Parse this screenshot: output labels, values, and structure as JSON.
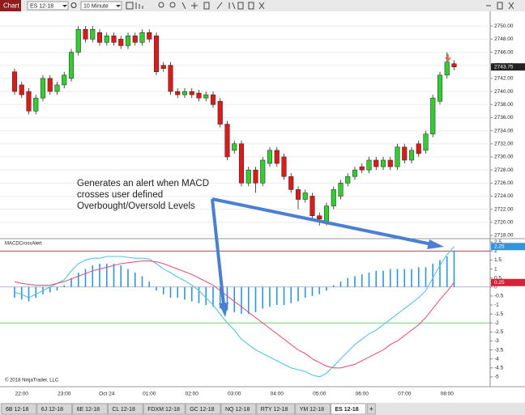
{
  "toolbar": {
    "tab": "Chart",
    "instrument": "ES 12-18",
    "interval": "10 Minute"
  },
  "annotation": {
    "lines": [
      "Generates an alert when MACD",
      "crosses user defined",
      "Overbought/Oversold Levels"
    ]
  },
  "copyright": "© 2018 NinjaTrader, LLC",
  "tabs": [
    "6B 12-18",
    "6J 12-18",
    "6E 12-18",
    "CL 12-18",
    "FDXM 12-18",
    "GC 12-18",
    "NQ 12-18",
    "RTY 12-18",
    "YM 12-18",
    "ES 12-18"
  ],
  "active_tab": "ES 12-18",
  "add_tab": "+",
  "chart_data": [
    {
      "type": "candlestick",
      "up_color": "#33cc33",
      "down_color": "#dd1a1a",
      "categories": [
        null,
        "22:00",
        null,
        null,
        null,
        null,
        null,
        "23:00",
        null,
        null,
        null,
        null,
        null,
        "Oct 24",
        null,
        null,
        null,
        null,
        null,
        "01:00",
        null,
        null,
        null,
        null,
        null,
        "02:00",
        null,
        null,
        null,
        null,
        null,
        "03:00",
        null,
        null,
        null,
        null,
        null,
        "04:00",
        null,
        null,
        null,
        null,
        null,
        "05:00",
        null,
        null,
        null,
        null,
        null,
        "06:00",
        null,
        null,
        null,
        null,
        null,
        "07:00",
        null,
        null,
        null,
        null,
        null,
        "08:00",
        null
      ],
      "open": [
        2743,
        2741,
        2740,
        2737,
        2739,
        2742,
        2740,
        2741,
        2742,
        2746,
        2749.5,
        2748,
        2749,
        2747.5,
        2748.5,
        2748,
        2747,
        2748.5,
        2747.5,
        2749,
        2748.5,
        2744,
        2744,
        2740,
        2739.5,
        2740,
        2739.75,
        2739,
        2739.5,
        2738.5,
        2735,
        2731,
        2732,
        2726,
        2728,
        2726,
        2729,
        2731,
        2730,
        2727,
        2725,
        2723.5,
        2724,
        2721,
        2720,
        2722.5,
        2724,
        2726,
        2727,
        2728.5,
        2728,
        2729.5,
        2728.5,
        2729.5,
        2728.5,
        2731.5,
        2729.5,
        2732,
        2731,
        2733.5,
        2738.5,
        2742.5,
        2744.25
      ],
      "high": [
        2743.5,
        2741.5,
        2740.5,
        2739.5,
        2742.5,
        2742.5,
        2741.5,
        2743,
        2746.5,
        2750,
        2750,
        2750,
        2749.5,
        2749,
        2749,
        2748.5,
        2749,
        2749,
        2749.5,
        2749.5,
        2749,
        2744.5,
        2744.5,
        2740.5,
        2740.5,
        2740.5,
        2740.25,
        2740,
        2740,
        2739,
        2735.5,
        2732.5,
        2732.5,
        2728.5,
        2728.5,
        2730,
        2731.5,
        2731.5,
        2730.5,
        2727.5,
        2725.5,
        2725,
        2724.5,
        2721.5,
        2723,
        2725.5,
        2726.5,
        2727.5,
        2728.5,
        2729,
        2730,
        2730,
        2730,
        2730,
        2732,
        2732,
        2731.5,
        2732.5,
        2734,
        2739.5,
        2743,
        2746,
        2744.75
      ],
      "low": [
        2739.5,
        2739,
        2736.5,
        2736.5,
        2738.5,
        2739.5,
        2739.5,
        2740.5,
        2741.5,
        2745.5,
        2747.5,
        2747.5,
        2747,
        2747,
        2747,
        2746.5,
        2746.5,
        2747,
        2747,
        2747.5,
        2742.5,
        2743,
        2739.5,
        2739,
        2739,
        2739,
        2738.5,
        2738.5,
        2737.5,
        2734.5,
        2729.5,
        2730.5,
        2725.5,
        2725.5,
        2724.5,
        2725.5,
        2728.5,
        2728.5,
        2726.5,
        2724.5,
        2722,
        2723,
        2720.5,
        2719.5,
        2719.5,
        2722,
        2723.5,
        2725.5,
        2726.5,
        2727.5,
        2727.5,
        2728,
        2728,
        2728,
        2728,
        2729,
        2729,
        2730,
        2730.5,
        2733,
        2738,
        2742,
        2743.25
      ],
      "close": [
        2740,
        2739.5,
        2737,
        2739,
        2742,
        2740,
        2741,
        2742.5,
        2746,
        2749.5,
        2748,
        2749.5,
        2747.5,
        2748.5,
        2747.5,
        2747,
        2748.5,
        2747.5,
        2749,
        2748,
        2743,
        2743.5,
        2740,
        2739.5,
        2740,
        2739.5,
        2739,
        2739.5,
        2738,
        2735,
        2730,
        2732,
        2726,
        2728,
        2726,
        2729.5,
        2731,
        2729,
        2727,
        2725,
        2723.5,
        2724.5,
        2721,
        2720.5,
        2722.5,
        2725,
        2726,
        2727,
        2728,
        2728,
        2729.5,
        2728.5,
        2729.5,
        2728.5,
        2731.5,
        2729.5,
        2731,
        2730.5,
        2733.5,
        2739,
        2742.5,
        2744.5,
        2743.75
      ],
      "ylim": [
        2717.75,
        2752.25
      ],
      "yticks": [
        {
          "value": 2718,
          "label": "2718.00"
        },
        {
          "value": 2720,
          "label": "2720.00"
        },
        {
          "value": 2722,
          "label": "2722.00"
        },
        {
          "value": 2724,
          "label": "2724.00"
        },
        {
          "value": 2726,
          "label": "2726.00"
        },
        {
          "value": 2728,
          "label": "2728.00"
        },
        {
          "value": 2730,
          "label": "2730.00"
        },
        {
          "value": 2732,
          "label": "2732.00"
        },
        {
          "value": 2734,
          "label": "2734.00"
        },
        {
          "value": 2736,
          "label": "2736.00"
        },
        {
          "value": 2738,
          "label": "2738.00"
        },
        {
          "value": 2740,
          "label": "2740.00"
        },
        {
          "value": 2742,
          "label": "2742.00"
        },
        {
          "value": 2744,
          "label": "2744.00"
        },
        {
          "value": 2746,
          "label": "2746.00"
        },
        {
          "value": 2748,
          "label": "2748.00"
        },
        {
          "value": 2750,
          "label": "2750.00"
        }
      ],
      "grid": true
    },
    {
      "type": "line",
      "title": "MACDCrossAlert",
      "series": [
        {
          "style": "bar",
          "color": "#2f95e0",
          "values": [
            -0.6,
            -0.7,
            -0.8,
            -0.6,
            -0.4,
            -0.3,
            -0.2,
            0.1,
            0.5,
            0.8,
            1.0,
            1.2,
            1.3,
            1.3,
            1.3,
            1.2,
            1.0,
            0.8,
            0.6,
            0.3,
            -0.2,
            -0.4,
            -0.6,
            -0.6,
            -0.7,
            -0.8,
            -0.9,
            -1.0,
            -1.1,
            -1.2,
            -1.3,
            -1.4,
            -1.5,
            -1.5,
            -1.4,
            -1.2,
            -1.1,
            -1.0,
            -1.0,
            -0.9,
            -0.8,
            -0.6,
            -0.5,
            -0.4,
            -0.2,
            0.1,
            0.3,
            0.5,
            0.6,
            0.7,
            0.8,
            0.9,
            0.9,
            1.0,
            1.0,
            1.0,
            1.0,
            1.1,
            1.1,
            1.3,
            1.5,
            1.7,
            2.0
          ]
        },
        {
          "style": "line",
          "color": "#55c3d6",
          "values": [
            -0.3,
            -0.4,
            -0.6,
            -0.4,
            -0.2,
            0.0,
            0.2,
            0.4,
            0.9,
            1.3,
            1.5,
            1.6,
            1.6,
            1.7,
            1.7,
            1.7,
            1.65,
            1.6,
            1.6,
            1.55,
            1.3,
            1.0,
            0.8,
            0.55,
            0.35,
            0.1,
            -0.2,
            -0.6,
            -1.0,
            -1.5,
            -2.0,
            -2.4,
            -2.9,
            -3.2,
            -3.5,
            -3.7,
            -3.9,
            -4.1,
            -4.3,
            -4.5,
            -4.6,
            -4.7,
            -4.9,
            -5.0,
            -4.8,
            -4.4,
            -4.0,
            -3.6,
            -3.2,
            -2.9,
            -2.6,
            -2.4,
            -2.1,
            -1.8,
            -1.5,
            -1.2,
            -0.9,
            -0.6,
            -0.2,
            0.5,
            1.2,
            1.8,
            2.25
          ],
          "badge_color": "#2f95e0"
        },
        {
          "style": "line",
          "color": "#e05a78",
          "values": [
            0.3,
            0.2,
            0.15,
            0.1,
            0.1,
            0.1,
            0.2,
            0.3,
            0.45,
            0.6,
            0.75,
            0.9,
            1.0,
            1.1,
            1.2,
            1.3,
            1.35,
            1.4,
            1.45,
            1.45,
            1.4,
            1.3,
            1.15,
            1.0,
            0.85,
            0.7,
            0.5,
            0.3,
            0.1,
            -0.2,
            -0.5,
            -0.8,
            -1.1,
            -1.4,
            -1.7,
            -2.0,
            -2.3,
            -2.6,
            -2.9,
            -3.2,
            -3.5,
            -3.7,
            -4.0,
            -4.2,
            -4.4,
            -4.5,
            -4.5,
            -4.4,
            -4.3,
            -4.1,
            -3.9,
            -3.7,
            -3.5,
            -3.2,
            -3.0,
            -2.7,
            -2.4,
            -2.1,
            -1.7,
            -1.2,
            -0.7,
            -0.25,
            0.25
          ],
          "badge_color": "#d8203a"
        }
      ],
      "overbought": 2,
      "overbought_color": "#c83a62",
      "oversold": -2,
      "oversold_color": "#6fd36f",
      "ylim": [
        -5.5,
        2.6
      ],
      "yticks": [
        2.5,
        2,
        1.5,
        1,
        0.5,
        0,
        -0.5,
        -1,
        -1.5,
        -2,
        -2.5,
        -3,
        -3.5,
        -4,
        -4.5,
        -5
      ]
    }
  ]
}
